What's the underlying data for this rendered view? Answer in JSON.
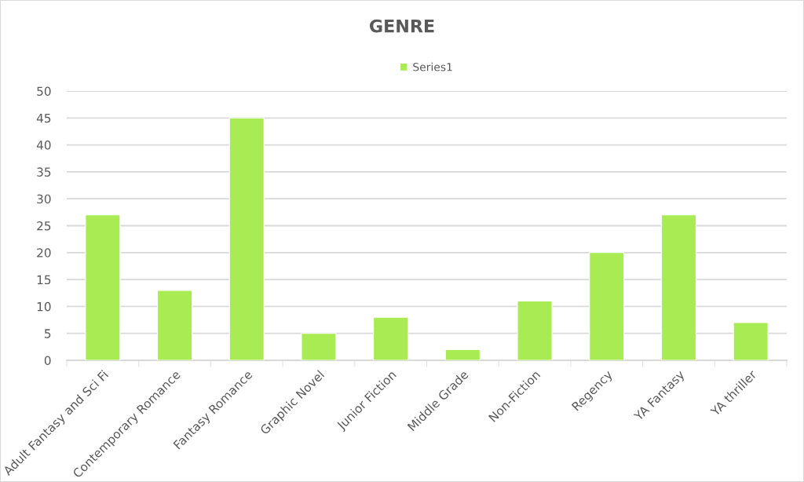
{
  "chart_data": {
    "type": "bar",
    "title": "GENRE",
    "categories": [
      "Adult Fantasy and Sci Fi",
      "Contemporary Romance",
      "Fantasy Romance",
      "Graphic Novel",
      "Junior Fiction",
      "Middle Grade",
      "Non-Fiction",
      "Regency",
      "YA Fantasy",
      "YA thriller"
    ],
    "series": [
      {
        "name": "Series1",
        "color": "#a9eb52",
        "values": [
          27,
          13,
          45,
          5,
          8,
          2,
          11,
          20,
          27,
          7
        ]
      }
    ],
    "ylim": [
      0,
      50
    ],
    "yticks": [
      0,
      5,
      10,
      15,
      20,
      25,
      30,
      35,
      40,
      45,
      50
    ],
    "grid": "y",
    "legend": "top"
  }
}
